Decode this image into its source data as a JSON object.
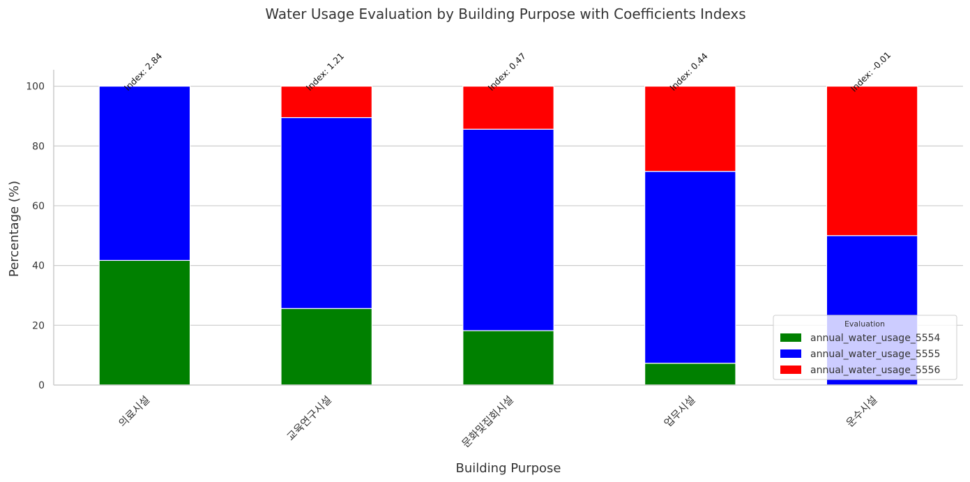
{
  "chart_data": {
    "type": "bar",
    "stacked": true,
    "title": "Water Usage Evaluation by Building Purpose with Coefficients Indexs",
    "xlabel": "Building Purpose",
    "ylabel": "Percentage (%)",
    "ylim": [
      0,
      105.5
    ],
    "yticks": [
      0,
      20,
      40,
      60,
      80,
      100
    ],
    "grid": "horizontal",
    "categories": [
      "의료시설",
      "교육연구시설",
      "문화및집회시설",
      "업무시설",
      "운수시설"
    ],
    "series": [
      {
        "name": "annual_water_usage_5554",
        "color": "#008000",
        "values": [
          41.7,
          25.6,
          18.2,
          7.3,
          0
        ]
      },
      {
        "name": "annual_water_usage_5555",
        "color": "#0000ff",
        "values": [
          58.3,
          63.9,
          67.4,
          64.2,
          50.0
        ]
      },
      {
        "name": "annual_water_usage_5556",
        "color": "#ff0000",
        "values": [
          0,
          10.5,
          14.4,
          28.5,
          50.0
        ]
      }
    ],
    "annotations": [
      "Index: 2.84",
      "Index: 1.21",
      "Index: 0.47",
      "Index: 0.44",
      "Index: -0.01"
    ],
    "legend": {
      "title": "Evaluation",
      "placement": "lower-right"
    }
  }
}
